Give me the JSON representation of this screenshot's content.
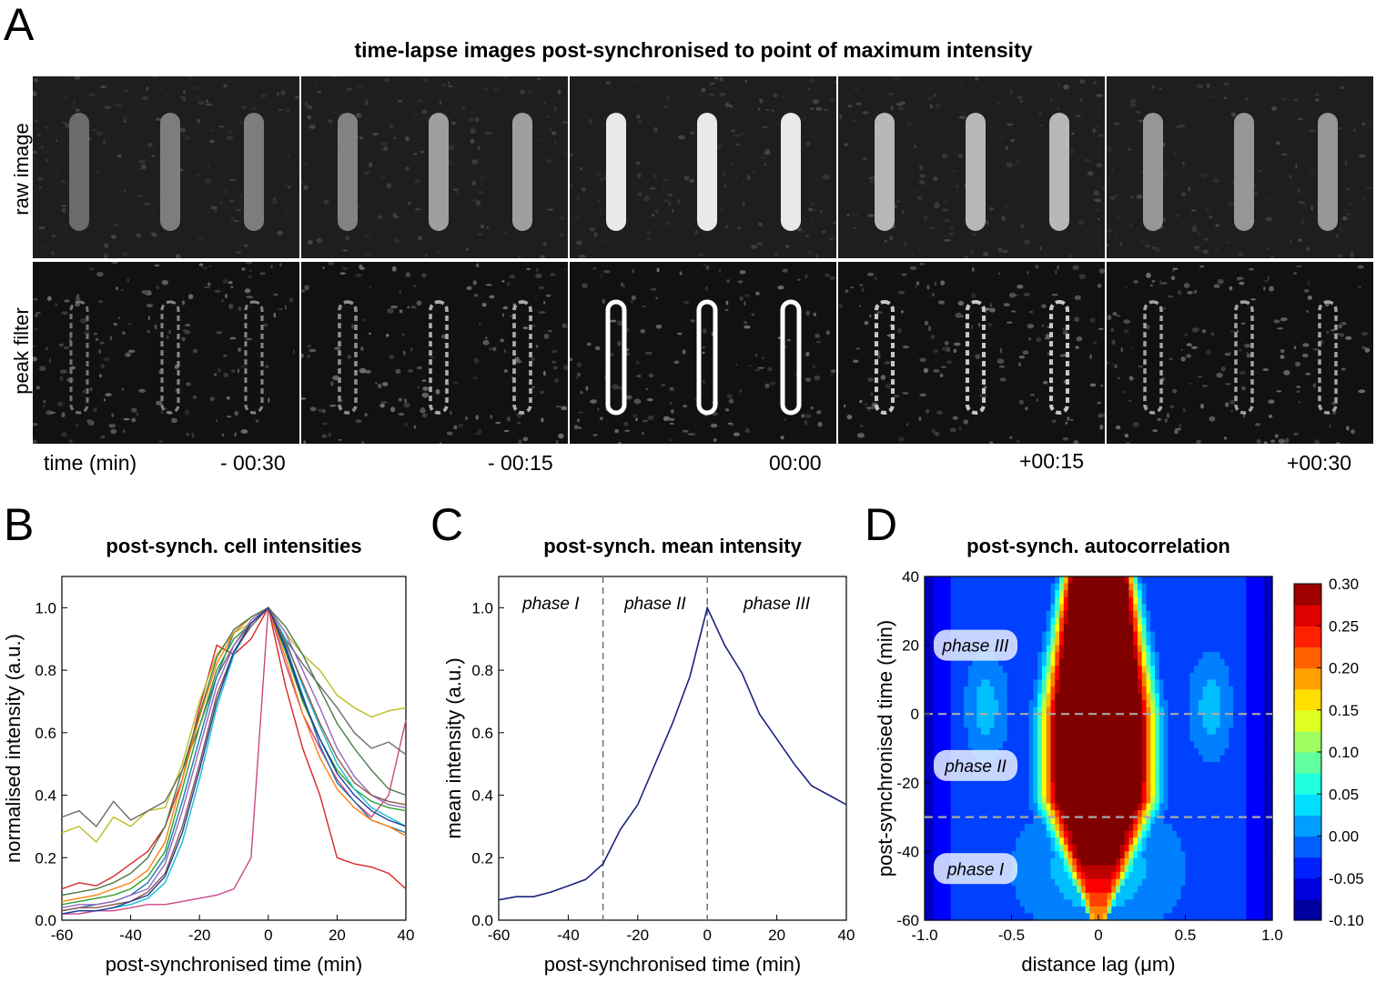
{
  "panelA": {
    "letter": "A",
    "title": "time-lapse images post-synchronised to point of maximum intensity",
    "row_labels": [
      "raw image",
      "peak filter"
    ],
    "time_axis_label": "time (min)",
    "time_labels": [
      "- 00:30",
      "- 00:15",
      "00:00",
      "+00:15",
      "+00:30"
    ],
    "brightness": [
      0.35,
      0.55,
      1.0,
      0.7,
      0.5
    ]
  },
  "chart_data": [
    {
      "panel": "B",
      "type": "line",
      "title": "post-synch. cell intensities",
      "xlabel": "post-synchronised time (min)",
      "ylabel": "normalised intensity (a.u.)",
      "xlim": [
        -60,
        40
      ],
      "ylim": [
        0,
        1.1
      ],
      "xticks": [
        -60,
        -40,
        -20,
        0,
        20,
        40
      ],
      "yticks": [
        0.0,
        0.2,
        0.4,
        0.6,
        0.8,
        1.0
      ],
      "x": [
        -60,
        -55,
        -50,
        -45,
        -40,
        -35,
        -30,
        -25,
        -20,
        -15,
        -10,
        -5,
        0,
        5,
        10,
        15,
        20,
        25,
        30,
        35,
        40
      ],
      "series": [
        {
          "color": "#d62728",
          "values": [
            0.1,
            0.12,
            0.11,
            0.14,
            0.18,
            0.22,
            0.3,
            0.45,
            0.68,
            0.88,
            0.85,
            0.9,
            1.0,
            0.75,
            0.55,
            0.4,
            0.2,
            0.18,
            0.17,
            0.15,
            0.1
          ]
        },
        {
          "color": "#bcbd22",
          "values": [
            0.28,
            0.3,
            0.25,
            0.33,
            0.3,
            0.35,
            0.36,
            0.5,
            0.7,
            0.85,
            0.92,
            0.95,
            1.0,
            0.92,
            0.85,
            0.8,
            0.72,
            0.68,
            0.65,
            0.67,
            0.68
          ]
        },
        {
          "color": "#6b6b6b",
          "values": [
            0.33,
            0.35,
            0.3,
            0.38,
            0.32,
            0.35,
            0.38,
            0.48,
            0.62,
            0.78,
            0.88,
            0.95,
            1.0,
            0.9,
            0.82,
            0.75,
            0.68,
            0.6,
            0.55,
            0.57,
            0.53
          ]
        },
        {
          "color": "#cc4488",
          "values": [
            0.02,
            0.02,
            0.03,
            0.03,
            0.04,
            0.05,
            0.05,
            0.06,
            0.07,
            0.08,
            0.1,
            0.2,
            1.0,
            0.82,
            0.66,
            0.55,
            0.45,
            0.38,
            0.33,
            0.4,
            0.64
          ]
        },
        {
          "color": "#1f77b4",
          "values": [
            0.03,
            0.04,
            0.05,
            0.06,
            0.08,
            0.12,
            0.2,
            0.38,
            0.58,
            0.78,
            0.92,
            0.97,
            1.0,
            0.88,
            0.72,
            0.56,
            0.44,
            0.38,
            0.32,
            0.3,
            0.28
          ]
        },
        {
          "color": "#2ca02c",
          "values": [
            0.05,
            0.06,
            0.07,
            0.08,
            0.1,
            0.14,
            0.22,
            0.42,
            0.62,
            0.8,
            0.9,
            0.95,
            1.0,
            0.86,
            0.7,
            0.58,
            0.48,
            0.42,
            0.38,
            0.36,
            0.35
          ]
        },
        {
          "color": "#17becf",
          "values": [
            0.02,
            0.03,
            0.03,
            0.04,
            0.05,
            0.07,
            0.12,
            0.25,
            0.45,
            0.68,
            0.85,
            0.95,
            1.0,
            0.9,
            0.75,
            0.62,
            0.5,
            0.42,
            0.36,
            0.33,
            0.3
          ]
        },
        {
          "color": "#9467bd",
          "values": [
            0.04,
            0.05,
            0.05,
            0.06,
            0.08,
            0.1,
            0.18,
            0.35,
            0.55,
            0.75,
            0.88,
            0.96,
            1.0,
            0.92,
            0.8,
            0.68,
            0.55,
            0.46,
            0.4,
            0.37,
            0.36
          ]
        },
        {
          "color": "#ff7f0e",
          "values": [
            0.06,
            0.07,
            0.08,
            0.1,
            0.12,
            0.16,
            0.25,
            0.45,
            0.65,
            0.82,
            0.92,
            0.97,
            1.0,
            0.84,
            0.66,
            0.52,
            0.42,
            0.36,
            0.32,
            0.3,
            0.27
          ]
        },
        {
          "color": "#8c564b",
          "values": [
            0.03,
            0.04,
            0.04,
            0.05,
            0.06,
            0.09,
            0.15,
            0.3,
            0.5,
            0.72,
            0.86,
            0.94,
            1.0,
            0.89,
            0.76,
            0.63,
            0.52,
            0.44,
            0.4,
            0.38,
            0.37
          ]
        },
        {
          "color": "#4a7a4a",
          "values": [
            0.08,
            0.09,
            0.1,
            0.12,
            0.15,
            0.2,
            0.3,
            0.48,
            0.66,
            0.84,
            0.93,
            0.97,
            1.0,
            0.94,
            0.85,
            0.74,
            0.63,
            0.55,
            0.48,
            0.42,
            0.4
          ]
        },
        {
          "color": "#1f3b99",
          "values": [
            0.02,
            0.03,
            0.03,
            0.04,
            0.06,
            0.08,
            0.14,
            0.28,
            0.48,
            0.7,
            0.86,
            0.95,
            1.0,
            0.87,
            0.71,
            0.58,
            0.47,
            0.4,
            0.35,
            0.32,
            0.3
          ]
        }
      ]
    },
    {
      "panel": "C",
      "type": "line",
      "title": "post-synch. mean intensity",
      "xlabel": "post-synchronised time (min)",
      "ylabel": "mean intensity (a.u.)",
      "xlim": [
        -60,
        40
      ],
      "ylim": [
        0,
        1.1
      ],
      "xticks": [
        -60,
        -40,
        -20,
        0,
        20,
        40
      ],
      "yticks": [
        0.0,
        0.2,
        0.4,
        0.6,
        0.8,
        1.0
      ],
      "x": [
        -60,
        -55,
        -50,
        -45,
        -40,
        -35,
        -30,
        -25,
        -20,
        -15,
        -10,
        -5,
        0,
        5,
        10,
        15,
        20,
        25,
        30,
        35,
        40
      ],
      "values": [
        0.065,
        0.075,
        0.075,
        0.09,
        0.11,
        0.13,
        0.18,
        0.29,
        0.37,
        0.5,
        0.63,
        0.78,
        1.0,
        0.88,
        0.79,
        0.66,
        0.58,
        0.5,
        0.43,
        0.4,
        0.37
      ],
      "vlines": [
        -30,
        0
      ],
      "phases": [
        {
          "label": "phase I",
          "x": -45
        },
        {
          "label": "phase II",
          "x": -15
        },
        {
          "label": "phase III",
          "x": 20
        }
      ],
      "line_color": "#1a237e"
    },
    {
      "panel": "D",
      "type": "heatmap",
      "title": "post-synch. autocorrelation",
      "xlabel": "distance lag (μm)",
      "ylabel": "post-synchronised time (min)",
      "xlim": [
        -1.0,
        1.0
      ],
      "ylim": [
        -60,
        40
      ],
      "xticks": [
        -1.0,
        -0.5,
        0,
        0.5,
        1.0
      ],
      "xtick_labels": [
        "-1.0",
        "-0.5",
        "0",
        "0.5",
        "1.0"
      ],
      "yticks": [
        -60,
        -40,
        -20,
        0,
        20,
        40
      ],
      "hlines": [
        0,
        -30
      ],
      "phases": [
        {
          "label": "phase III",
          "y": 20
        },
        {
          "label": "phase II",
          "y": -15
        },
        {
          "label": "phase I",
          "y": -45
        }
      ],
      "colorbar": {
        "min": -0.1,
        "max": 0.3,
        "ticks": [
          "0.30",
          "0.25",
          "0.20",
          "0.15",
          "0.10",
          "0.05",
          "0.00",
          "-0.05",
          "-0.10"
        ]
      }
    }
  ]
}
